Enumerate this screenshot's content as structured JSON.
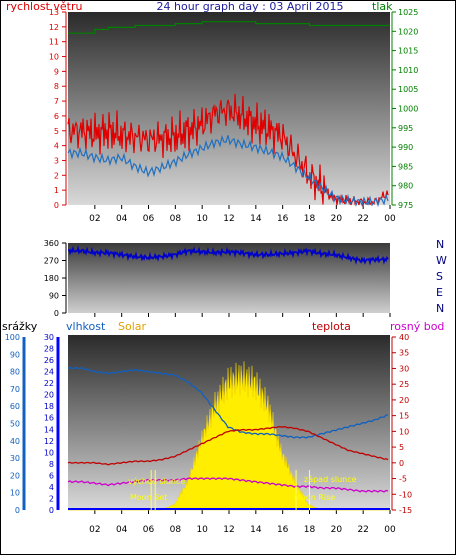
{
  "title": "24 hour graph day : 03 April 2015",
  "time_ticks": [
    "02",
    "04",
    "06",
    "08",
    "10",
    "12",
    "14",
    "16",
    "18",
    "20",
    "22",
    "00"
  ],
  "colors": {
    "wind": "#e00000",
    "pressure": "#008000",
    "gust_line": "#2070c0",
    "direction": "#0000cc",
    "humidity": "#1060c0",
    "solar": "#ffee00",
    "temperature": "#c00000",
    "dewpoint": "#cc00cc",
    "rain": "#0000ff"
  },
  "labels": {
    "wind": "rychlost větru",
    "pressure": "tlak",
    "rain": "srážky",
    "humidity": "vlhkost",
    "solar": "Solar",
    "temperature": "teplota",
    "dewpoint": "rosný bod",
    "dirN1": "N",
    "dirW": "W",
    "dirS": "S",
    "dirE": "E",
    "dirN2": "N",
    "sunrise": "východ slunce",
    "sunset": "západ slunce",
    "moonset": "Moon Set",
    "moonrise": "Moon Rise"
  },
  "chart_data": [
    {
      "type": "line",
      "name": "wind/pressure panel",
      "left_axis": {
        "label": "rychlost větru",
        "ticks": [
          0,
          1,
          2,
          3,
          4,
          5,
          6,
          7,
          8,
          9,
          10,
          11,
          12,
          13
        ],
        "range": [
          0,
          13
        ]
      },
      "right_axis": {
        "label": "tlak",
        "ticks": [
          975,
          980,
          985,
          990,
          995,
          1000,
          1005,
          1010,
          1015,
          1020,
          1025
        ],
        "range": [
          975,
          1025
        ]
      },
      "x_hours": [
        1,
        2,
        3,
        4,
        5,
        6,
        7,
        8,
        9,
        10,
        11,
        12,
        13,
        14,
        15,
        16,
        17,
        18,
        19,
        20,
        21,
        22,
        23,
        24
      ],
      "series": [
        {
          "name": "rychlost větru",
          "axis": "left",
          "values": [
            5,
            4.8,
            5,
            4.7,
            4.6,
            4.4,
            4.5,
            4.6,
            5,
            5.4,
            6.2,
            6.4,
            6,
            5.5,
            5.1,
            4.7,
            3.4,
            2.1,
            1.2,
            0.4,
            0.3,
            0.2,
            0.2,
            0.8
          ]
        },
        {
          "name": "gust trend",
          "axis": "left",
          "values": [
            3.5,
            3.2,
            3,
            3.2,
            2.6,
            2.2,
            2.5,
            2.9,
            3.4,
            3.8,
            4.2,
            4.4,
            4.1,
            3.9,
            3.6,
            3.3,
            2.6,
            1.9,
            1.2,
            0.5,
            0.3,
            0.2,
            0.2,
            0.4
          ]
        },
        {
          "name": "tlak",
          "axis": "right",
          "values": [
            1019.5,
            1019.5,
            1020.5,
            1021,
            1021,
            1021.5,
            1021.5,
            1021.5,
            1022,
            1022,
            1022.5,
            1022.5,
            1022.5,
            1022.5,
            1022,
            1022,
            1022,
            1022,
            1021.5,
            1021.5,
            1021.5,
            1021.5,
            1021.5,
            1021.5
          ]
        }
      ]
    },
    {
      "type": "line",
      "name": "wind direction panel",
      "left_axis": {
        "ticks": [
          0,
          90,
          180,
          270,
          360
        ],
        "range": [
          0,
          360
        ]
      },
      "x_hours": [
        1,
        2,
        3,
        4,
        5,
        6,
        7,
        8,
        9,
        10,
        11,
        12,
        13,
        14,
        15,
        16,
        17,
        18,
        19,
        20,
        21,
        22,
        23,
        24
      ],
      "series": [
        {
          "name": "direction",
          "values": [
            320,
            310,
            310,
            300,
            290,
            285,
            290,
            300,
            320,
            315,
            310,
            315,
            310,
            300,
            300,
            305,
            310,
            320,
            305,
            300,
            285,
            270,
            275,
            275
          ]
        }
      ]
    },
    {
      "type": "line",
      "name": "humidity/solar/temperature panel",
      "axes": {
        "srazky": {
          "ticks": [
            0,
            2,
            4,
            6,
            8,
            10,
            12,
            14,
            16,
            18,
            20,
            22,
            24,
            26,
            28,
            30
          ],
          "range": [
            0,
            30
          ]
        },
        "vlhkost": {
          "ticks": [
            0,
            10,
            20,
            30,
            40,
            50,
            60,
            70,
            80,
            90,
            100
          ],
          "range": [
            0,
            100
          ]
        },
        "teplota": {
          "ticks": [
            -15,
            -10,
            -5,
            0,
            5,
            10,
            15,
            20,
            25,
            30,
            35,
            40
          ],
          "range": [
            -15,
            40
          ]
        }
      },
      "x_hours": [
        1,
        2,
        3,
        4,
        5,
        6,
        7,
        8,
        9,
        10,
        11,
        12,
        13,
        14,
        15,
        16,
        17,
        18,
        19,
        20,
        21,
        22,
        23,
        24
      ],
      "series": [
        {
          "name": "vlhkost",
          "axis": "vlhkost",
          "values": [
            82,
            80,
            79,
            80,
            81,
            80,
            79,
            78,
            74,
            68,
            58,
            48,
            45,
            44,
            44,
            43,
            42,
            42,
            44,
            46,
            48,
            50,
            52,
            55
          ]
        },
        {
          "name": "teplota",
          "axis": "teplota",
          "values": [
            0,
            0,
            -0.5,
            0,
            0.5,
            0.5,
            1,
            2,
            4,
            6,
            8,
            10,
            10.5,
            10.5,
            11,
            11.5,
            11,
            10,
            8,
            6,
            4,
            3,
            2,
            1
          ]
        },
        {
          "name": "rosný bod",
          "axis": "teplota",
          "values": [
            -6,
            -6.5,
            -7,
            -6.5,
            -6,
            -5.5,
            -5.5,
            -5.5,
            -5,
            -5,
            -5,
            -5,
            -5.5,
            -6,
            -6.5,
            -7,
            -7.5,
            -7.5,
            -8,
            -8,
            -8.5,
            -9,
            -9,
            -9
          ]
        },
        {
          "name": "Solar",
          "axis": "srazky",
          "values": [
            0,
            0,
            0,
            0,
            0,
            0,
            0,
            1,
            5,
            12,
            18,
            22,
            23,
            22,
            18,
            10,
            5,
            1,
            0,
            0,
            0,
            0,
            0,
            0
          ]
        }
      ]
    }
  ]
}
